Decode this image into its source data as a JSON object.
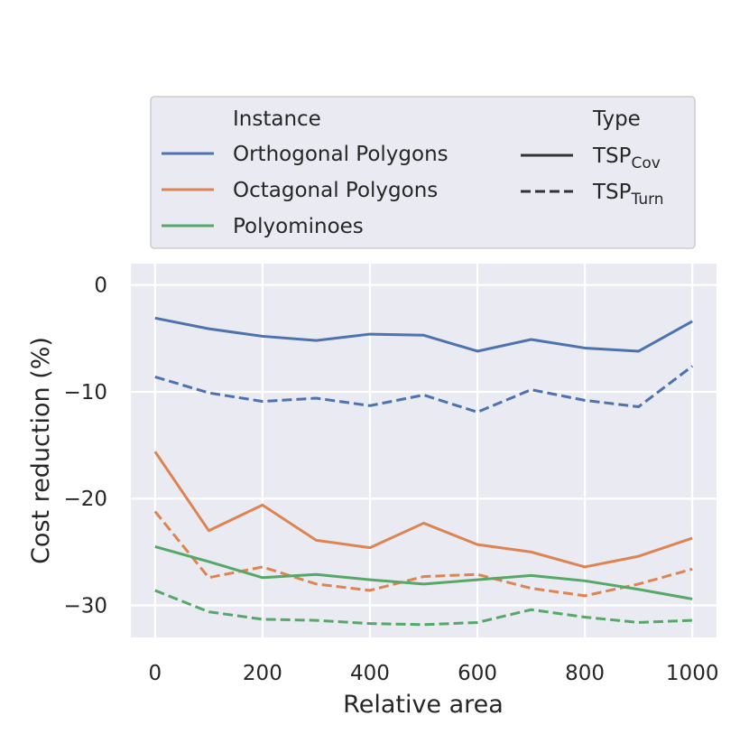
{
  "chart_data": {
    "type": "line",
    "xlabel": "Relative area",
    "ylabel": "Cost reduction (%)",
    "xlim": [
      -45,
      1045
    ],
    "ylim": [
      -33,
      2
    ],
    "x_ticks": [
      0,
      200,
      400,
      600,
      800,
      1000
    ],
    "y_ticks": [
      0,
      -10,
      -20,
      -30
    ],
    "x_tick_labels": [
      "0",
      "200",
      "400",
      "600",
      "800",
      "1000"
    ],
    "y_tick_labels": [
      "0",
      "−10",
      "−20",
      "−30"
    ],
    "grid": true,
    "x": [
      0,
      100,
      200,
      300,
      400,
      500,
      600,
      700,
      800,
      900,
      1000
    ],
    "series": [
      {
        "name": "Orthogonal Polygons – TSP Cov",
        "instance": "Orthogonal Polygons",
        "type": "TSP Cov",
        "color": "#4c72b0",
        "dashed": false,
        "values": [
          -3.1,
          -4.1,
          -4.8,
          -5.2,
          -4.6,
          -4.7,
          -6.2,
          -5.1,
          -5.9,
          -6.2,
          -3.4
        ]
      },
      {
        "name": "Orthogonal Polygons – TSP Turn",
        "instance": "Orthogonal Polygons",
        "type": "TSP Turn",
        "color": "#4c72b0",
        "dashed": true,
        "values": [
          -8.6,
          -10.1,
          -10.9,
          -10.6,
          -11.3,
          -10.3,
          -11.9,
          -9.8,
          -10.8,
          -11.4,
          -7.6
        ]
      },
      {
        "name": "Octagonal Polygons – TSP Cov",
        "instance": "Octagonal Polygons",
        "type": "TSP Cov",
        "color": "#dd8452",
        "dashed": false,
        "values": [
          -15.6,
          -23.0,
          -20.6,
          -23.9,
          -24.6,
          -22.3,
          -24.3,
          -25.0,
          -26.4,
          -25.4,
          -23.7
        ]
      },
      {
        "name": "Octagonal Polygons – TSP Turn",
        "instance": "Octagonal Polygons",
        "type": "TSP Turn",
        "color": "#dd8452",
        "dashed": true,
        "values": [
          -21.2,
          -27.4,
          -26.4,
          -28.0,
          -28.6,
          -27.3,
          -27.1,
          -28.4,
          -29.1,
          -28.0,
          -26.6
        ]
      },
      {
        "name": "Polyominoes – TSP Cov",
        "instance": "Polyominoes",
        "type": "TSP Cov",
        "color": "#55a868",
        "dashed": false,
        "values": [
          -24.5,
          -25.9,
          -27.4,
          -27.1,
          -27.6,
          -28.0,
          -27.6,
          -27.2,
          -27.7,
          -28.5,
          -29.4
        ]
      },
      {
        "name": "Polyominoes – TSP Turn",
        "instance": "Polyominoes",
        "type": "TSP Turn",
        "color": "#55a868",
        "dashed": true,
        "values": [
          -28.6,
          -30.6,
          -31.3,
          -31.4,
          -31.7,
          -31.8,
          -31.6,
          -30.4,
          -31.1,
          -31.6,
          -31.4
        ]
      }
    ],
    "legend": {
      "placement": "above plot",
      "instance_title": "Instance",
      "type_title": "Type",
      "instances": [
        {
          "label": "Orthogonal Polygons",
          "color": "#4c72b0"
        },
        {
          "label": "Octagonal Polygons",
          "color": "#dd8452"
        },
        {
          "label": "Polyominoes",
          "color": "#55a868"
        }
      ],
      "types": [
        {
          "main": "TSP",
          "sub": "Cov",
          "dashed": false,
          "color": "#333333"
        },
        {
          "main": "TSP",
          "sub": "Turn",
          "dashed": true,
          "color": "#333333"
        }
      ]
    },
    "colors": {
      "plot_bg": "#eaeaf2",
      "grid": "#ffffff",
      "text": "#262626"
    }
  }
}
